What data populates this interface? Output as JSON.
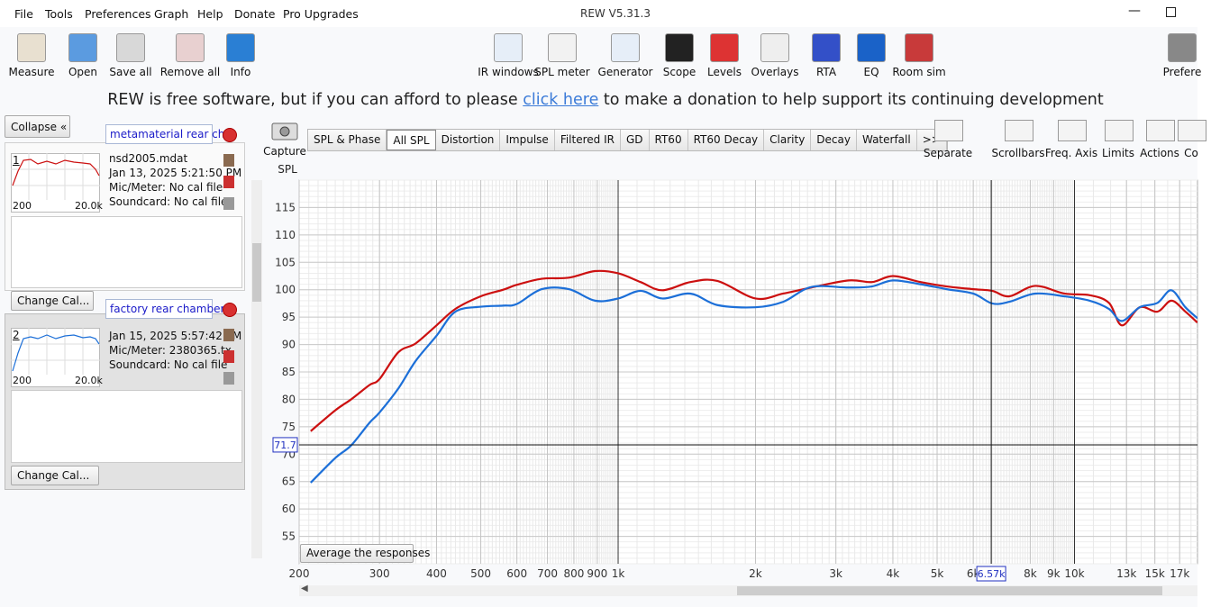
{
  "window": {
    "title": "REW V5.31.3",
    "menu": [
      "File",
      "Tools",
      "Preferences",
      "Graph",
      "Help",
      "Donate",
      "Pro Upgrades"
    ]
  },
  "toolbar": {
    "left": [
      "Measure",
      "Open",
      "Save all",
      "Remove all",
      "Info"
    ],
    "right": [
      "IR windows",
      "SPL meter",
      "Generator",
      "Scope",
      "Levels",
      "Overlays",
      "RTA",
      "EQ",
      "Room sim",
      "Prefere"
    ]
  },
  "banner": {
    "before": "REW is free software, but if you can afford to please",
    "link": "click here",
    "after": "to make a donation to help support its continuing development"
  },
  "panel": {
    "collapse": "Collapse",
    "measurements": [
      {
        "number": "1",
        "name": "metamaterial rear ch",
        "lines": [
          "nsd2005.mdat",
          "Jan 13, 2025 5:21:50 PM",
          "Mic/Meter: No cal file",
          "Soundcard: No cal file"
        ],
        "axis_start": "200",
        "axis_end": "20.0k",
        "button": "Change Cal..."
      },
      {
        "number": "2",
        "name": "factory rear chamber",
        "lines": [
          "Jan 15, 2025 5:57:42 PM",
          "Mic/Meter: 2380365.tx",
          "Soundcard: No cal file"
        ],
        "axis_start": "200",
        "axis_end": "20.0k",
        "button": "Change Cal..."
      }
    ]
  },
  "graph": {
    "capture": "Capture",
    "tabs": [
      "SPL & Phase",
      "All SPL",
      "Distortion",
      "Impulse",
      "Filtered IR",
      "GD",
      "RT60",
      "RT60 Decay",
      "Clarity",
      "Decay",
      "Waterfall",
      ">>"
    ],
    "selected_tab": 1,
    "tools": [
      "Separate",
      "Scrollbars",
      "Freq. Axis",
      "Limits",
      "Actions",
      "Co"
    ],
    "average_button": "Average the responses"
  },
  "chart_data": {
    "type": "line",
    "y_label": "SPL",
    "log_x": true,
    "grid": true,
    "xlim": [
      200,
      18600
    ],
    "ylim": [
      50,
      120
    ],
    "xticks": [
      200,
      300,
      400,
      500,
      600,
      700,
      800,
      900,
      {
        "value": 1000,
        "label": "1k"
      },
      {
        "value": 2000,
        "label": "2k"
      },
      {
        "value": 3000,
        "label": "3k"
      },
      {
        "value": 4000,
        "label": "4k"
      },
      {
        "value": 5000,
        "label": "5k"
      },
      {
        "value": 6000,
        "label": "6k"
      },
      {
        "value": 8000,
        "label": "8k"
      },
      {
        "value": 9000,
        "label": "9k"
      },
      {
        "value": 10000,
        "label": "10k"
      },
      {
        "value": 13000,
        "label": "13k"
      },
      {
        "value": 15000,
        "label": "15k"
      },
      {
        "value": 17000,
        "label": "17k"
      }
    ],
    "yticks": [
      55,
      60,
      65,
      70,
      75,
      80,
      85,
      90,
      95,
      100,
      105,
      110,
      115
    ],
    "x": [
      212,
      240,
      260,
      285,
      300,
      330,
      360,
      400,
      440,
      500,
      560,
      600,
      680,
      780,
      890,
      1000,
      1120,
      1250,
      1440,
      1650,
      2000,
      2300,
      2650,
      3200,
      3600,
      4000,
      4600,
      5250,
      6000,
      6600,
      7200,
      8200,
      9500,
      10800,
      11900,
      12700,
      13900,
      15200,
      16300,
      17500,
      18600
    ],
    "series": [
      {
        "name": "metamaterial rear ch",
        "color": "#cc1010",
        "values": [
          74.2,
          78.0,
          80.0,
          82.6,
          83.7,
          88.6,
          90.2,
          93.5,
          96.5,
          98.8,
          100.0,
          100.9,
          102.0,
          102.2,
          103.4,
          103.0,
          101.4,
          99.9,
          101.4,
          101.6,
          98.4,
          99.3,
          100.4,
          101.7,
          101.4,
          102.5,
          101.4,
          100.6,
          100.1,
          99.8,
          98.8,
          100.7,
          99.3,
          99.0,
          97.6,
          93.5,
          96.8,
          96.0,
          98.0,
          96.0,
          94.0
        ]
      },
      {
        "name": "factory rear chamber",
        "color": "#1c6fd8",
        "values": [
          64.8,
          69.3,
          71.6,
          75.7,
          77.6,
          82.0,
          87.0,
          91.6,
          96.0,
          96.9,
          97.1,
          97.4,
          100.1,
          100.1,
          98.0,
          98.4,
          99.8,
          98.4,
          99.3,
          97.2,
          96.8,
          97.8,
          100.5,
          100.4,
          100.6,
          101.7,
          101.0,
          100.1,
          99.3,
          97.5,
          97.8,
          99.3,
          98.8,
          98.0,
          96.5,
          94.3,
          96.8,
          97.6,
          99.9,
          96.8,
          94.8
        ]
      }
    ],
    "cursor": {
      "x": {
        "value": 6570,
        "label": "6.57k"
      },
      "y": 71.7
    }
  }
}
